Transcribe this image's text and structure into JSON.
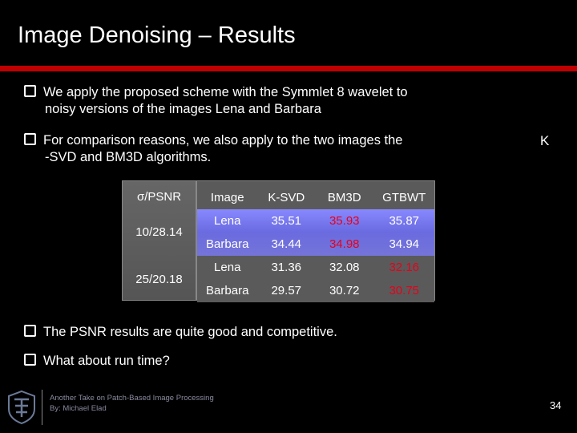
{
  "slide": {
    "title": "Image Denoising – Results",
    "bullets": [
      {
        "line1": "We apply the proposed scheme with the Symmlet 8 wavelet to",
        "line2": "noisy versions of the images Lena and Barbara"
      },
      {
        "line1": "For comparison reasons, we also apply to the two images the",
        "line2": "-SVD and BM3D algorithms."
      },
      {
        "line1": "The PSNR results are quite good and competitive."
      },
      {
        "line1": "What about run time?"
      }
    ],
    "k_mark": "K"
  },
  "table": {
    "sigma_header": "σ/PSNR",
    "headers": [
      "Image",
      "K-SVD",
      "BM3D",
      "GTBWT"
    ],
    "groups": [
      "10/28.14",
      "25/20.18"
    ],
    "rows": [
      [
        "Lena",
        "35.51",
        "35.93",
        "35.87"
      ],
      [
        "Barbara",
        "34.44",
        "34.98",
        "34.94"
      ],
      [
        "Lena",
        "31.36",
        "32.08",
        "32.16"
      ],
      [
        "Barbara",
        "29.57",
        "30.72",
        "30.75"
      ]
    ]
  },
  "footer": {
    "line1": "Another Take on Patch-Based Image Processing",
    "line2": "By: Michael Elad",
    "page": "34"
  },
  "colors": {
    "accent_red": "#c00000",
    "best_value": "#e8001a",
    "row_highlight": "#8888ff"
  }
}
